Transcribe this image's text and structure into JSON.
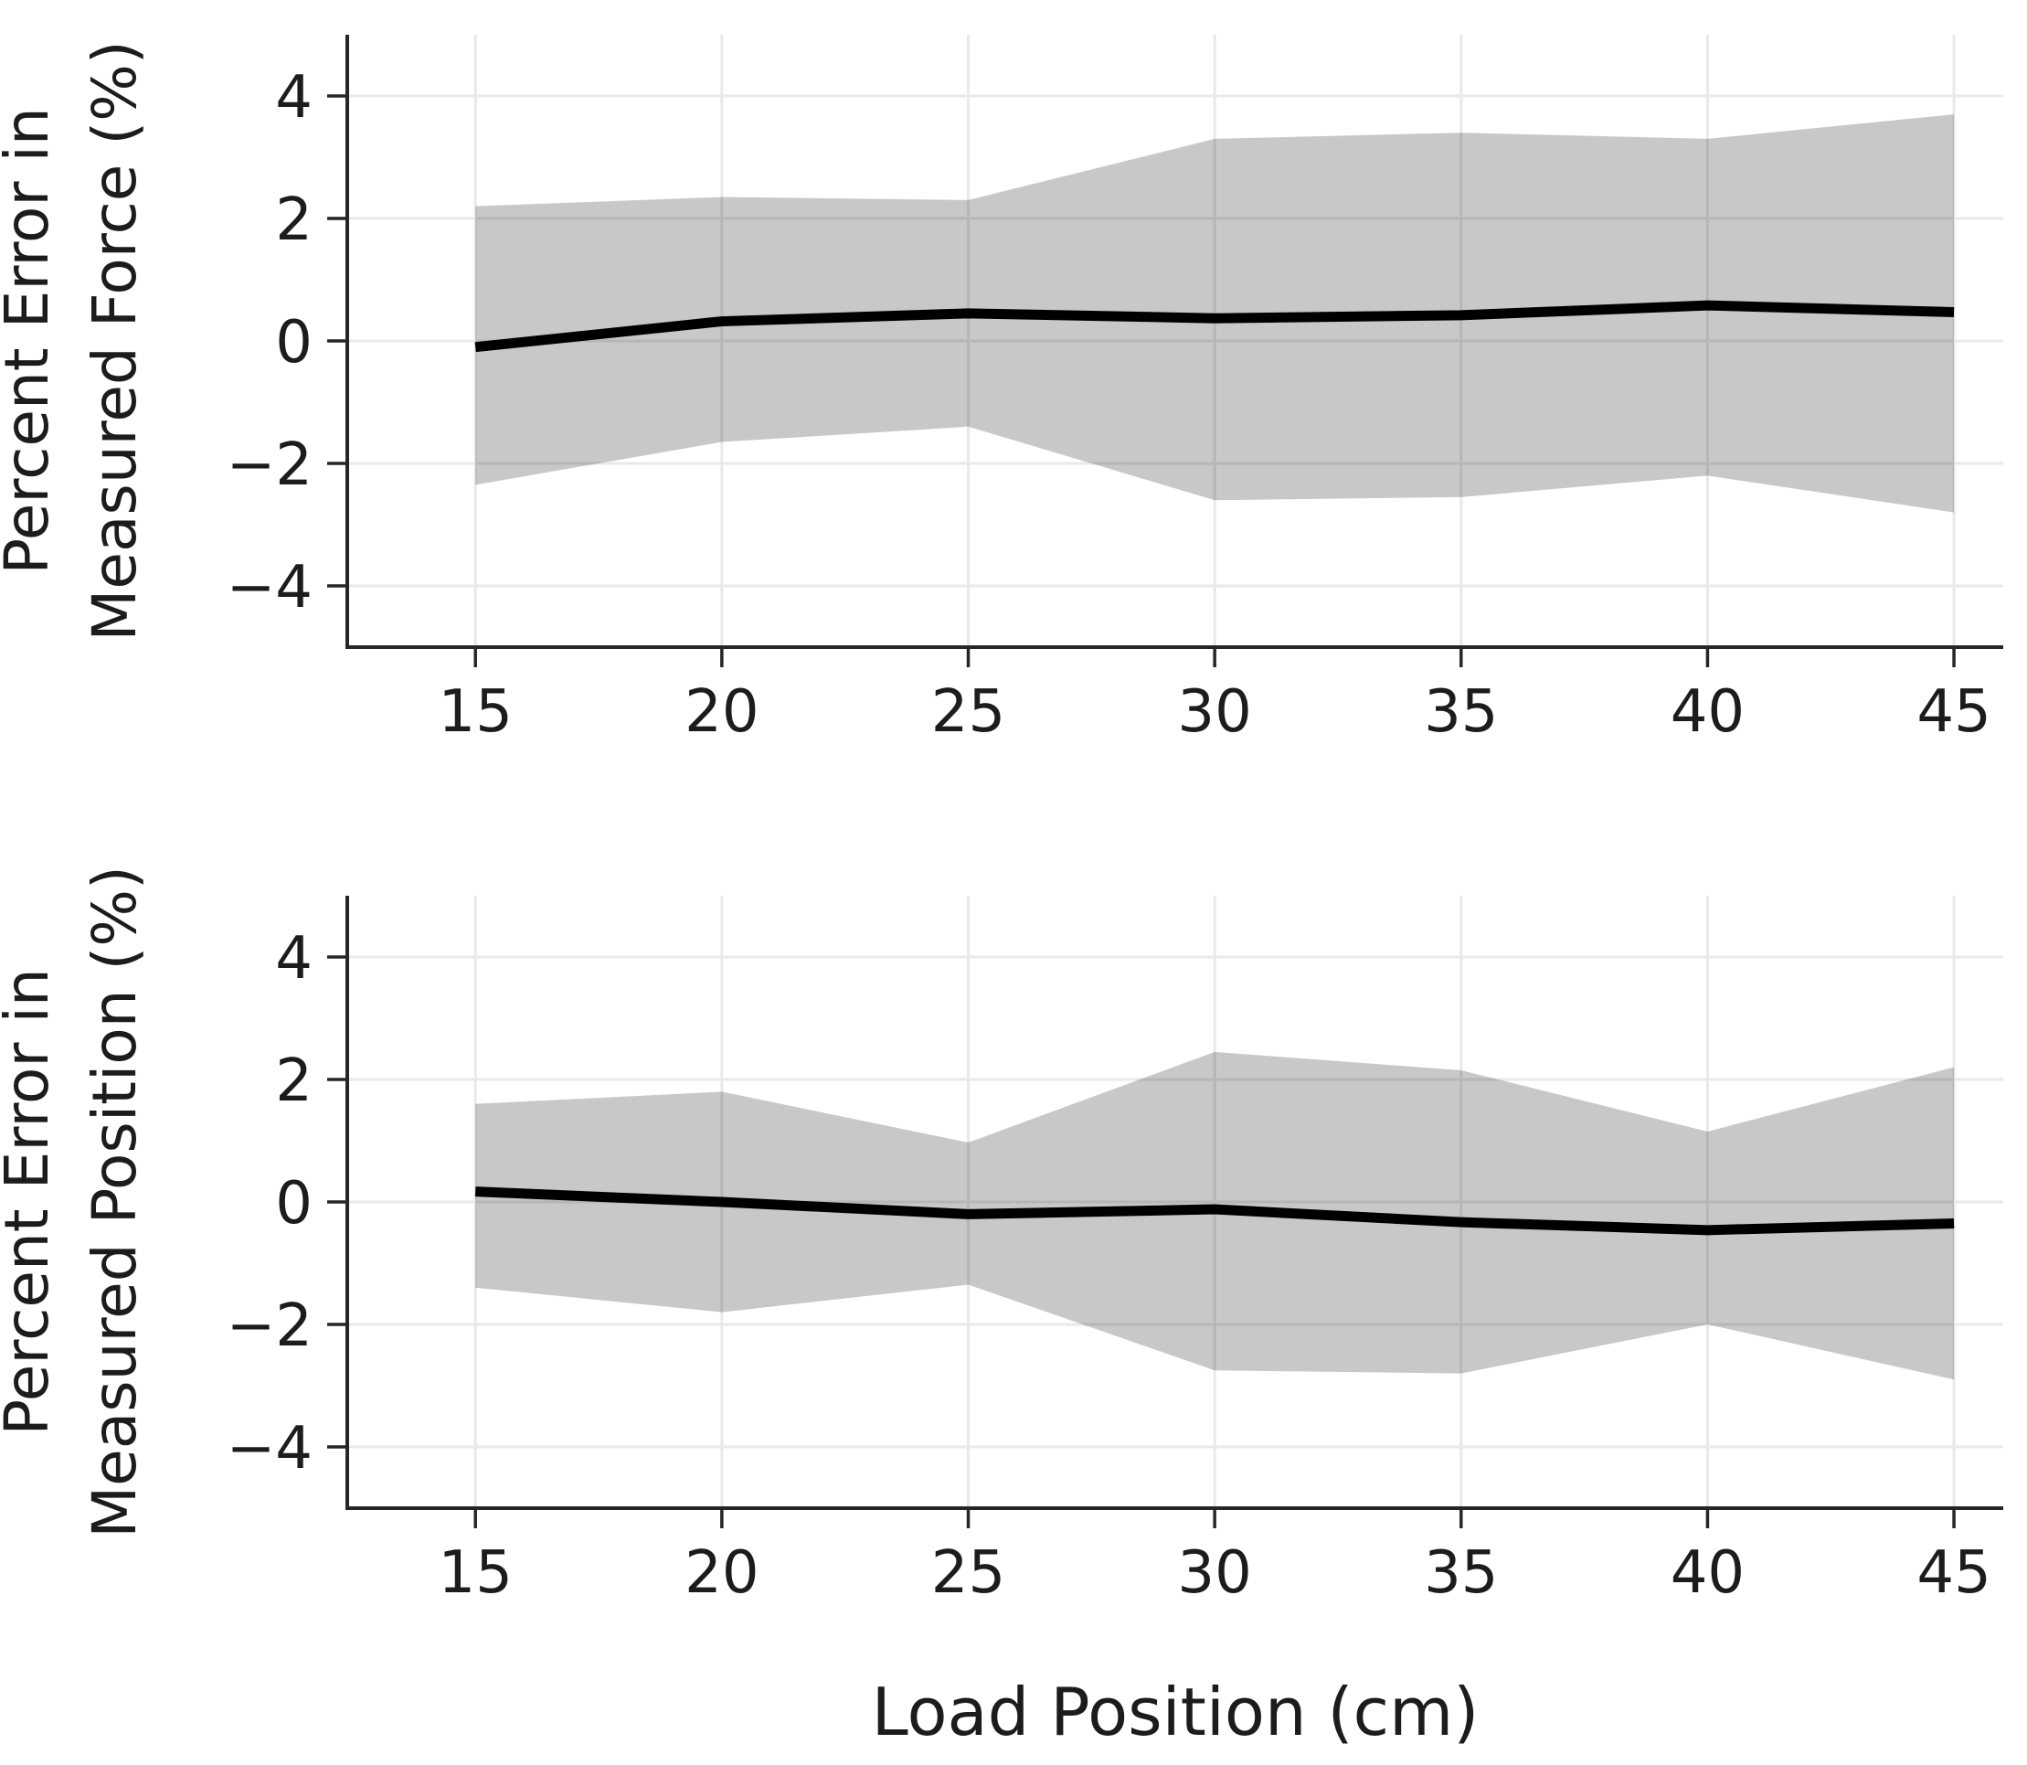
{
  "figure": {
    "background": "#ffffff",
    "band_color_rgba": "rgba(0,0,0,0.215)",
    "mean_line_color": "#000000",
    "grid_color": "#e9e9e9",
    "spine_color": "#262626",
    "tick_label_color": "#1c1c1c",
    "axis_title_color": "#1c1c1c"
  },
  "chart_data": [
    {
      "type": "line",
      "panel": "force",
      "title": "",
      "ylabel_lines": [
        "Percent Error in",
        "Measured Force (%)"
      ],
      "xlabel": null,
      "x": [
        15,
        20,
        25,
        30,
        35,
        40,
        45
      ],
      "series": [
        {
          "name": "mean",
          "values": [
            -0.1,
            0.32,
            0.45,
            0.37,
            0.42,
            0.58,
            0.47
          ]
        },
        {
          "name": "band_upper",
          "values": [
            2.2,
            2.35,
            2.3,
            3.3,
            3.4,
            3.3,
            3.7
          ]
        },
        {
          "name": "band_lower",
          "values": [
            -2.35,
            -1.65,
            -1.4,
            -2.6,
            -2.55,
            -2.2,
            -2.8
          ]
        }
      ],
      "xticks": {
        "values": [
          15,
          20,
          25,
          30,
          35,
          40,
          45
        ],
        "labels": [
          "15",
          "20",
          "25",
          "30",
          "35",
          "40",
          "45"
        ]
      },
      "yticks": {
        "values": [
          -4,
          -2,
          0,
          2,
          4
        ],
        "labels": [
          "−4",
          "−2",
          "0",
          "2",
          "4"
        ]
      },
      "xlim": [
        12.4,
        46.0
      ],
      "ylim": [
        -5,
        5
      ],
      "grid": true,
      "legend": "none",
      "band_style": "filled"
    },
    {
      "type": "line",
      "panel": "position",
      "title": "",
      "ylabel_lines": [
        "Percent Error in",
        "Measured Position (%)"
      ],
      "xlabel": "Load Position (cm)",
      "x": [
        15,
        20,
        25,
        30,
        35,
        40,
        45
      ],
      "series": [
        {
          "name": "mean",
          "values": [
            0.17,
            0.0,
            -0.2,
            -0.12,
            -0.33,
            -0.46,
            -0.35
          ]
        },
        {
          "name": "band_upper",
          "values": [
            1.6,
            1.8,
            0.97,
            2.45,
            2.15,
            1.15,
            2.2
          ]
        },
        {
          "name": "band_lower",
          "values": [
            -1.4,
            -1.8,
            -1.35,
            -2.75,
            -2.8,
            -2.0,
            -2.9
          ]
        }
      ],
      "xticks": {
        "values": [
          15,
          20,
          25,
          30,
          35,
          40,
          45
        ],
        "labels": [
          "15",
          "20",
          "25",
          "30",
          "35",
          "40",
          "45"
        ]
      },
      "yticks": {
        "values": [
          -4,
          -2,
          0,
          2,
          4
        ],
        "labels": [
          "−4",
          "−2",
          "0",
          "2",
          "4"
        ]
      },
      "xlim": [
        12.4,
        46.0
      ],
      "ylim": [
        -5,
        5
      ],
      "grid": true,
      "legend": "none",
      "band_style": "filled"
    }
  ]
}
